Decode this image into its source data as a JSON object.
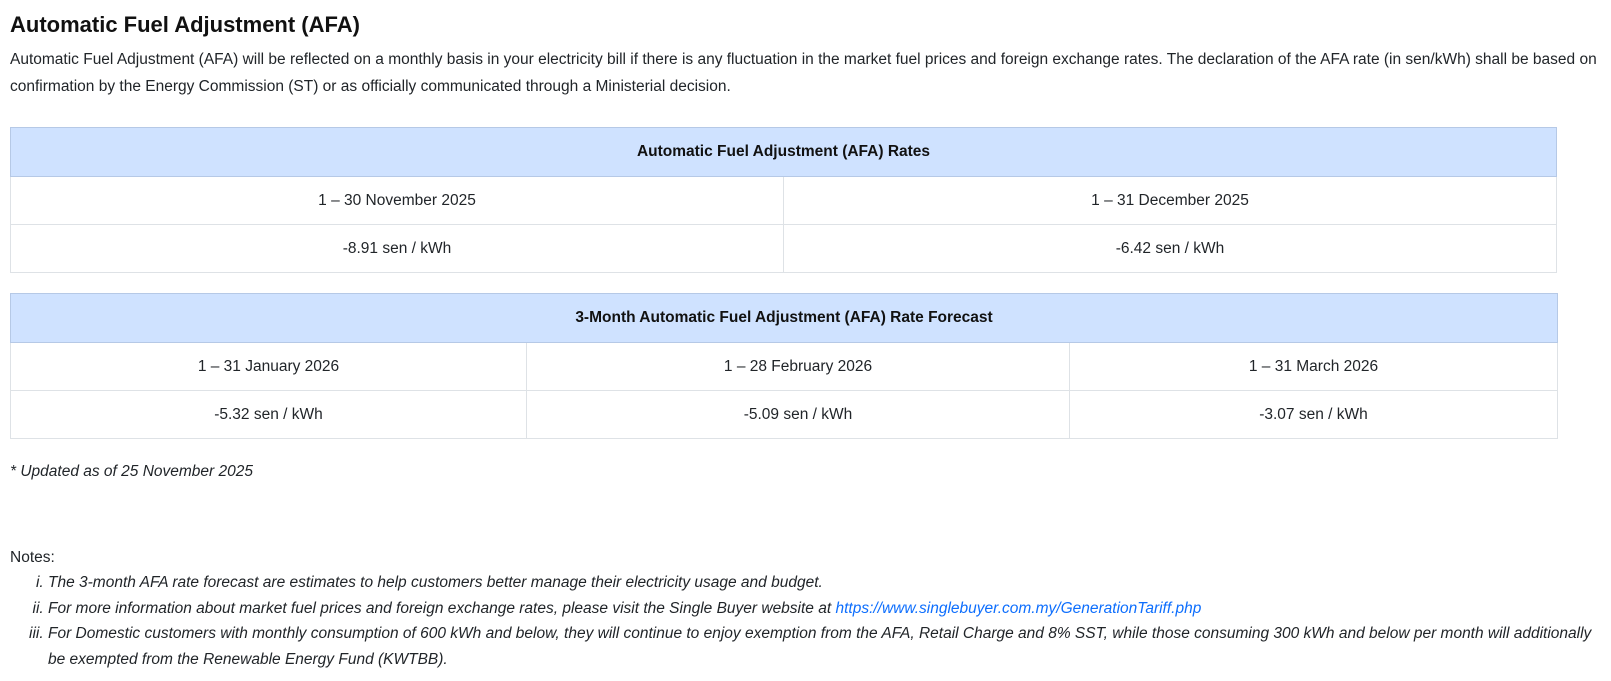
{
  "title": "Automatic Fuel Adjustment (AFA)",
  "intro": "Automatic Fuel Adjustment (AFA) will be reflected on a monthly basis in your electricity bill if there is any fluctuation in the market fuel prices and foreign exchange rates. The declaration of the AFA rate (in sen/kWh) shall be based on confirmation by the Energy Commission (ST) or as officially communicated through a Ministerial decision.",
  "rates_table": {
    "header": "Automatic Fuel Adjustment (AFA) Rates",
    "periods": [
      "1 – 30 November 2025",
      "1 – 31 December 2025"
    ],
    "values": [
      "-8.91 sen / kWh",
      "-6.42 sen / kWh"
    ]
  },
  "forecast_table": {
    "header": "3-Month Automatic Fuel Adjustment (AFA) Rate Forecast",
    "periods": [
      "1 – 31 January 2026",
      "1 – 28 February 2026",
      "1 – 31 March 2026"
    ],
    "values": [
      "-5.32 sen / kWh",
      "-5.09 sen / kWh",
      "-3.07 sen / kWh"
    ]
  },
  "updated": "* Updated as of 25 November 2025",
  "notes": {
    "label": "Notes:",
    "items": [
      "The 3-month AFA rate forecast are estimates to help customers better manage their electricity usage and budget.",
      "For more information about market fuel prices and foreign exchange rates, please visit the Single Buyer website at ",
      "For Domestic customers with monthly consumption of 600 kWh and below, they will continue to enjoy exemption from the AFA, Retail Charge and 8% SST, while those consuming 300 kWh and below per month will additionally be exempted from the Renewable Energy Fund (KWTBB)."
    ],
    "link": "https://www.singlebuyer.com.my/GenerationTariff.php"
  }
}
